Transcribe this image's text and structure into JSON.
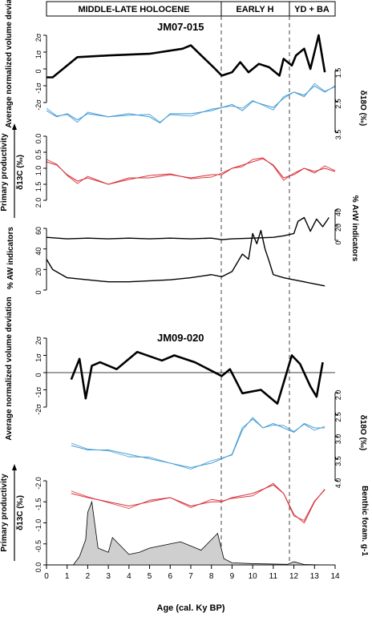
{
  "period_labels": [
    "MIDDLE-LATE HOLOCENE",
    "EARLY H",
    "YD + BA"
  ],
  "core_labels": [
    "JM07-015",
    "JM09-020"
  ],
  "axis_labels": {
    "volume": "Average normalized volume deviation",
    "d18o": "δ18O (‰)",
    "d13c": "δ13C (‰)",
    "primary_productivity": "Primary productivity",
    "aw": "% AW indicators",
    "arw": "% ArW indicators",
    "benthic": "Benthic foram. g-1",
    "xlabel": "Age (cal. Ky BP)"
  },
  "sigma_ticks": [
    "2σ",
    "1σ",
    "0",
    "-1σ",
    "-2σ"
  ],
  "colors": {
    "d18o": "#4a9fd6",
    "d13c": "#d9363e",
    "black": "#000000",
    "fill": "#cfcfcf"
  },
  "chart_data": [
    {
      "type": "line",
      "core": "JM07-015",
      "panel": "volume",
      "xlim": [
        0,
        14
      ],
      "ylim": [
        -2,
        2
      ],
      "x": [
        0,
        0.3,
        1.5,
        3,
        5,
        6.6,
        7,
        8.1,
        8.5,
        9,
        9.4,
        9.8,
        10.3,
        10.8,
        11.3,
        11.5,
        11.9,
        12.1,
        12.5,
        12.8,
        13.2,
        13.5
      ],
      "y": [
        -0.5,
        -0.5,
        0.7,
        0.8,
        0.9,
        1.2,
        1.4,
        0.1,
        -0.4,
        -0.2,
        0.4,
        -0.2,
        0.3,
        0.1,
        -0.4,
        0.6,
        0.2,
        0.8,
        1.2,
        0.0,
        2.0,
        -0.2
      ]
    },
    {
      "type": "line",
      "core": "JM07-015",
      "panel": "d18o",
      "ylim": [
        3.5,
        1.5
      ],
      "series": [
        {
          "name": "",
          "x": [
            0,
            0.5,
            1,
            1.5,
            2,
            3,
            4,
            5,
            5.5,
            6,
            7,
            8,
            8.5,
            9,
            9.5,
            10,
            10.5,
            11,
            11.5,
            12,
            12.5,
            13,
            13.5,
            14
          ],
          "values": [
            2.8,
            3.0,
            2.9,
            3.1,
            2.9,
            3.0,
            2.9,
            3.0,
            3.2,
            2.9,
            2.9,
            2.8,
            2.7,
            2.6,
            2.8,
            2.5,
            2.6,
            2.7,
            2.4,
            2.2,
            2.3,
            2.0,
            2.2,
            2.0
          ]
        }
      ]
    },
    {
      "type": "line",
      "core": "JM07-015",
      "panel": "d13c",
      "ylim": [
        2.0,
        0.0
      ],
      "series": [
        {
          "name": "",
          "x": [
            0,
            0.5,
            1,
            1.5,
            2,
            3,
            4,
            5,
            6,
            7,
            8,
            8.5,
            9,
            9.5,
            10,
            10.5,
            11,
            11.5,
            12,
            12.5,
            13,
            13.5,
            14
          ],
          "values": [
            0.8,
            0.9,
            1.2,
            1.4,
            1.3,
            1.5,
            1.3,
            1.3,
            1.2,
            1.3,
            1.2,
            1.2,
            1.0,
            0.9,
            0.8,
            0.7,
            0.9,
            1.3,
            1.2,
            1.0,
            1.1,
            1.0,
            1.1
          ]
        }
      ]
    },
    {
      "type": "line",
      "core": "JM07-015",
      "panel": "arw",
      "ylim": [
        0,
        40
      ],
      "x": [
        0,
        1,
        2,
        3,
        4,
        5,
        6,
        7,
        8,
        8.5,
        9,
        10,
        11,
        11.5,
        12,
        12.2,
        12.5,
        12.8,
        13.1,
        13.4,
        13.7
      ],
      "y": [
        4,
        2,
        3,
        2,
        3,
        2,
        3,
        2,
        3,
        1,
        2,
        3,
        4,
        6,
        9,
        25,
        30,
        12,
        28,
        18,
        30
      ]
    },
    {
      "type": "line",
      "core": "JM07-015",
      "panel": "aw",
      "ylim": [
        0,
        60
      ],
      "x": [
        0,
        0.3,
        1,
        2,
        3,
        4,
        5,
        6,
        7,
        8,
        8.5,
        9,
        9.5,
        9.8,
        10,
        10.2,
        10.4,
        10.6,
        10.8,
        11,
        11.5,
        12,
        12.5,
        13,
        13.5
      ],
      "y": [
        30,
        20,
        12,
        10,
        8,
        8,
        9,
        10,
        12,
        15,
        13,
        18,
        35,
        30,
        55,
        45,
        58,
        40,
        28,
        15,
        12,
        10,
        8,
        6,
        4
      ]
    },
    {
      "type": "line",
      "core": "JM09-020",
      "panel": "volume",
      "ylim": [
        -2,
        2
      ],
      "x": [
        1.2,
        1.6,
        1.9,
        2.2,
        2.6,
        3.4,
        4.4,
        5.6,
        6.2,
        7.2,
        8.5,
        8.9,
        9.5,
        10.4,
        11.2,
        11.9,
        12.3,
        12.8,
        13.1,
        13.4
      ],
      "y": [
        -0.4,
        0.8,
        -1.5,
        0.4,
        0.6,
        0.2,
        1.2,
        0.7,
        1.0,
        0.6,
        -0.2,
        0.2,
        -1.2,
        -1.0,
        -1.8,
        1.0,
        0.5,
        -0.8,
        -1.4,
        0.6
      ]
    },
    {
      "type": "line",
      "core": "JM09-020",
      "panel": "d18o",
      "ylim": [
        4.0,
        2.0
      ],
      "series": [
        {
          "name": "",
          "x": [
            1.2,
            2,
            3,
            4,
            5,
            6,
            7,
            8,
            8.5,
            9,
            9.5,
            10,
            10.5,
            11,
            11.5,
            12,
            12.5,
            13,
            13.5
          ],
          "values": [
            3.2,
            3.3,
            3.3,
            3.4,
            3.5,
            3.6,
            3.7,
            3.6,
            3.5,
            3.4,
            2.8,
            2.6,
            2.8,
            2.7,
            2.8,
            2.9,
            2.7,
            2.8,
            2.8
          ]
        }
      ]
    },
    {
      "type": "line",
      "core": "JM09-020",
      "panel": "d13c",
      "ylim": [
        0.0,
        -2.0
      ],
      "series": [
        {
          "name": "",
          "x": [
            1.2,
            2,
            3,
            4,
            5,
            6,
            7,
            8,
            8.5,
            9,
            10,
            11,
            11.5,
            12,
            12.5,
            13,
            13.5
          ],
          "values": [
            -1.7,
            -1.6,
            -1.5,
            -1.4,
            -1.5,
            -1.6,
            -1.4,
            -1.5,
            -1.5,
            -1.6,
            -1.7,
            -1.9,
            -1.7,
            -1.2,
            -1.0,
            -1.5,
            -1.8
          ]
        }
      ]
    },
    {
      "type": "area",
      "core": "JM09-020",
      "panel": "benthic",
      "ylim": [
        0,
        40000
      ],
      "x": [
        1.3,
        1.6,
        1.9,
        2.0,
        2.2,
        2.5,
        3.0,
        3.2,
        3.6,
        4.0,
        4.5,
        5.0,
        5.5,
        6.0,
        6.5,
        7.0,
        7.5,
        8.0,
        8.3,
        8.6,
        9.0,
        10.0,
        11.0,
        11.7,
        12.0,
        12.5,
        13.0,
        13.5
      ],
      "y": [
        0,
        4000,
        12000,
        25000,
        30000,
        8000,
        6000,
        13000,
        9000,
        5000,
        6000,
        8000,
        9000,
        10000,
        11000,
        9000,
        7000,
        12000,
        15000,
        3000,
        1000,
        600,
        400,
        300,
        1500,
        200,
        100,
        0
      ]
    }
  ]
}
